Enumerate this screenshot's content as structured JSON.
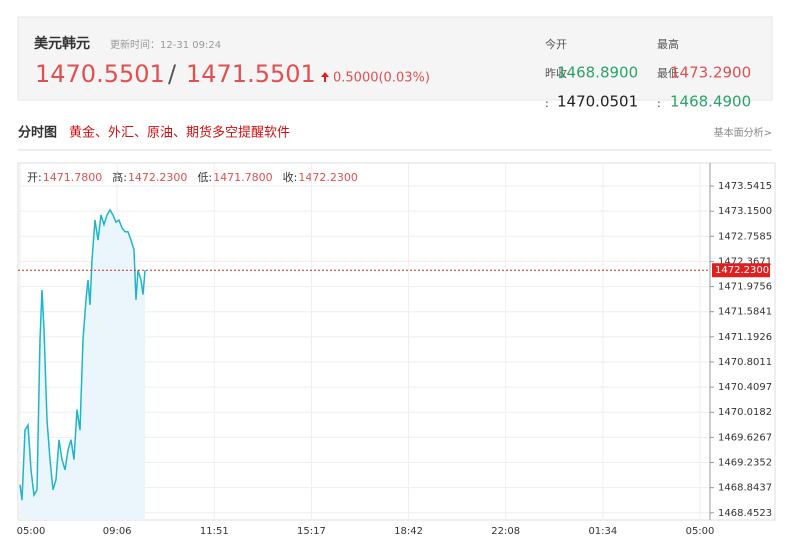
{
  "header": {
    "name": "美元韩元",
    "update": "更新时间：12-31 09:24",
    "bid": "1470.5501",
    "sep": "/",
    "ask": "1471.5501",
    "change": "0.5000(0.03%)",
    "stats": [
      {
        "label": "今开",
        "sub": "昨收",
        "value": "1468.8900",
        "colon": ":",
        "value2": "1470.0501"
      },
      {
        "label": "最高",
        "sub": "最低",
        "value": "1473.2900",
        "colon": ":",
        "value2": "1468.4900"
      }
    ]
  },
  "section": {
    "title": "分时图",
    "promo": "黄金、外汇、原油、期货多空提醒软件",
    "link": "基本面分析>"
  },
  "info": [
    {
      "label": "开:",
      "value": "1471.7800"
    },
    {
      "label": "高:",
      "value": "1472.2300"
    },
    {
      "label": "低:",
      "value": "1471.7800"
    },
    {
      "label": "收:",
      "value": "1472.2300"
    }
  ],
  "chart_data": {
    "type": "line",
    "color": "#1fb5c9",
    "fill": "#eaf6fb",
    "grid": true,
    "x": [
      0,
      0.021,
      0.051,
      0.082,
      0.113,
      0.144,
      0.175,
      0.206,
      0.226,
      0.247,
      0.278,
      0.309,
      0.34,
      0.371,
      0.401,
      0.432,
      0.463,
      0.494,
      0.525,
      0.556,
      0.587,
      0.618,
      0.649,
      0.679,
      0.7,
      0.721,
      0.741,
      0.772,
      0.803,
      0.834,
      0.865,
      0.896,
      0.926,
      0.957,
      0.988,
      1.019,
      1.05,
      1.081,
      1.112,
      1.143,
      1.174,
      1.194,
      1.215,
      1.246,
      1.266,
      1.287
    ],
    "series": [
      {
        "values": [
          1468.89,
          1468.65,
          1469.74,
          1469.82,
          1469.12,
          1468.73,
          1468.81,
          1471.15,
          1471.92,
          1471.3,
          1469.9,
          1469.28,
          1468.81,
          1468.97,
          1469.59,
          1469.28,
          1469.12,
          1469.43,
          1469.59,
          1469.28,
          1470.06,
          1469.74,
          1471.15,
          1471.77,
          1472.08,
          1471.69,
          1472.39,
          1473.01,
          1472.7,
          1473.09,
          1472.94,
          1473.09,
          1473.17,
          1473.09,
          1472.98,
          1473.01,
          1472.89,
          1472.83,
          1472.83,
          1472.7,
          1472.55,
          1471.77,
          1472.23,
          1472.08,
          1471.85,
          1472.23
        ]
      }
    ],
    "xlim": [
      0,
      7
    ],
    "xticks": [
      {
        "value": 0,
        "label": "05:00"
      },
      {
        "value": 1,
        "label": "09:06"
      },
      {
        "value": 2,
        "label": "11:51"
      },
      {
        "value": 3,
        "label": "15:17"
      },
      {
        "value": 4,
        "label": "18:42"
      },
      {
        "value": 5,
        "label": "22:08"
      },
      {
        "value": 6,
        "label": "01:34"
      },
      {
        "value": 7,
        "label": "05:00"
      }
    ],
    "ylim": [
      1468.34,
      1473.9
    ],
    "yticks": [
      1473.5415,
      {
        "value": 1473.15,
        "label": "1473.1500"
      },
      1472.7585,
      1472.3671,
      1471.9756,
      1471.5841,
      1471.1926,
      1470.8011,
      1470.4097,
      1470.0182,
      1469.6267,
      1469.2352,
      1468.8437,
      1468.4523
    ],
    "ref_line": {
      "value": 1472.23,
      "label": "1472.2300",
      "color": "#e02020"
    }
  }
}
